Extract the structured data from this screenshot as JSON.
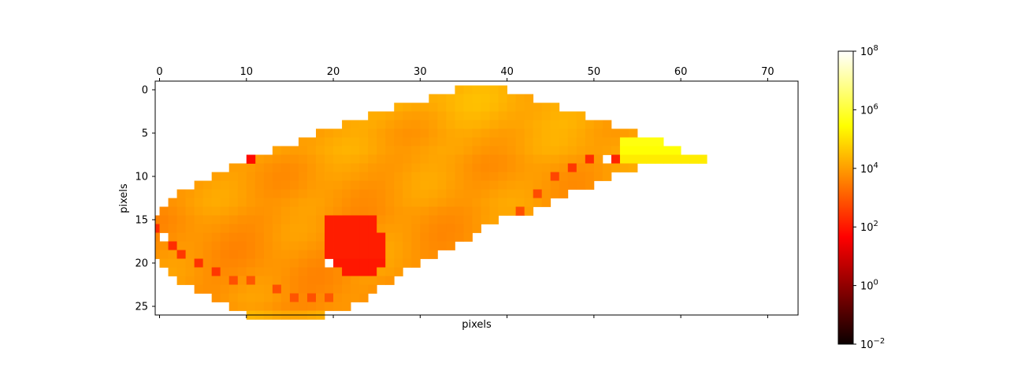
{
  "chart_data": {
    "type": "heatmap",
    "title": "",
    "xlabel": "pixels",
    "ylabel": "pixels",
    "xlim": [
      -0.5,
      73.5
    ],
    "ylim": [
      26.5,
      -0.5
    ],
    "grid": false,
    "x_ticks": [
      "0",
      "10",
      "20",
      "30",
      "40",
      "50",
      "60",
      "70"
    ],
    "y_ticks": [
      "0",
      "5",
      "10",
      "15",
      "20",
      "25"
    ],
    "colormap": "hot",
    "color_scale": "log",
    "colorbar_range": [
      0.01,
      100000000
    ],
    "colorbar_ticks": [
      {
        "value": 0.01,
        "base": "10",
        "exp": "−2"
      },
      {
        "value": 1,
        "base": "10",
        "exp": "0"
      },
      {
        "value": 100,
        "base": "10",
        "exp": "2"
      },
      {
        "value": 10000,
        "base": "10",
        "exp": "4"
      },
      {
        "value": 1000000,
        "base": "10",
        "exp": "6"
      },
      {
        "value": 100000000,
        "base": "10",
        "exp": "8"
      }
    ],
    "grid_size": {
      "rows": 27,
      "cols": 74
    },
    "rows": [
      {
        "y": 0,
        "spans": [
          [
            34,
            39,
            20000
          ]
        ]
      },
      {
        "y": 1,
        "spans": [
          [
            31,
            42,
            20000
          ]
        ]
      },
      {
        "y": 2,
        "spans": [
          [
            27,
            45,
            18000
          ]
        ]
      },
      {
        "y": 3,
        "spans": [
          [
            24,
            48,
            15000
          ]
        ]
      },
      {
        "y": 4,
        "spans": [
          [
            21,
            51,
            14000
          ]
        ]
      },
      {
        "y": 5,
        "spans": [
          [
            18,
            54,
            12000
          ]
        ]
      },
      {
        "y": 6,
        "spans": [
          [
            16,
            52,
            12000
          ],
          [
            53,
            57,
            400000
          ]
        ]
      },
      {
        "y": 7,
        "spans": [
          [
            13,
            52,
            12000
          ],
          [
            53,
            59,
            300000
          ]
        ]
      },
      {
        "y": 8,
        "spans": [
          [
            11,
            52,
            10000
          ],
          [
            53,
            62,
            150000
          ]
        ]
      },
      {
        "y": 9,
        "spans": [
          [
            8,
            54,
            9000
          ]
        ]
      },
      {
        "y": 10,
        "spans": [
          [
            6,
            51,
            9000
          ]
        ]
      },
      {
        "y": 11,
        "spans": [
          [
            4,
            49,
            9000
          ]
        ]
      },
      {
        "y": 12,
        "spans": [
          [
            2,
            46,
            9000
          ]
        ]
      },
      {
        "y": 13,
        "spans": [
          [
            1,
            44,
            9000
          ]
        ]
      },
      {
        "y": 14,
        "spans": [
          [
            0,
            42,
            8000
          ]
        ]
      },
      {
        "y": 15,
        "spans": [
          [
            -1,
            18,
            7000
          ],
          [
            19,
            24,
            120
          ],
          [
            25,
            38,
            8000
          ]
        ]
      },
      {
        "y": 16,
        "spans": [
          [
            -1,
            18,
            7000
          ],
          [
            19,
            24,
            120
          ],
          [
            25,
            36,
            8000
          ]
        ]
      },
      {
        "y": 17,
        "spans": [
          [
            -1,
            18,
            7000
          ],
          [
            19,
            25,
            120
          ],
          [
            26,
            35,
            8000
          ]
        ]
      },
      {
        "y": 18,
        "spans": [
          [
            -1,
            18,
            7000
          ],
          [
            19,
            25,
            120
          ],
          [
            26,
            33,
            8000
          ]
        ]
      },
      {
        "y": 19,
        "spans": [
          [
            -1,
            18,
            7000
          ],
          [
            19,
            25,
            120
          ],
          [
            26,
            31,
            8000
          ]
        ]
      },
      {
        "y": 20,
        "spans": [
          [
            0,
            19,
            7000
          ],
          [
            20,
            25,
            100
          ],
          [
            26,
            29,
            8000
          ]
        ]
      },
      {
        "y": 21,
        "spans": [
          [
            1,
            20,
            7000
          ],
          [
            21,
            24,
            100
          ],
          [
            25,
            27,
            8000
          ]
        ]
      },
      {
        "y": 22,
        "spans": [
          [
            2,
            26,
            7000
          ]
        ]
      },
      {
        "y": 23,
        "spans": [
          [
            4,
            24,
            7000
          ]
        ]
      },
      {
        "y": 24,
        "spans": [
          [
            6,
            23,
            7000
          ]
        ]
      },
      {
        "y": 25,
        "spans": [
          [
            8,
            21,
            6000
          ]
        ]
      },
      {
        "y": 26,
        "spans": [
          [
            10,
            18,
            15000
          ]
        ]
      }
    ],
    "missing_cells": [
      [
        0,
        17
      ],
      [
        51,
        8
      ],
      [
        19,
        20
      ]
    ],
    "low_value_cells": [
      [
        10,
        8,
        60
      ],
      [
        49,
        8,
        200
      ],
      [
        52,
        8,
        150
      ],
      [
        47,
        9,
        300
      ],
      [
        45,
        10,
        500
      ],
      [
        43,
        12,
        600
      ],
      [
        41,
        14,
        700
      ],
      [
        -1,
        16,
        200
      ],
      [
        1,
        18,
        200
      ],
      [
        2,
        19,
        300
      ],
      [
        4,
        20,
        250
      ],
      [
        6,
        21,
        300
      ],
      [
        8,
        22,
        700
      ],
      [
        10,
        22,
        900
      ],
      [
        13,
        23,
        700
      ],
      [
        15,
        24,
        800
      ],
      [
        17,
        24,
        700
      ],
      [
        19,
        24,
        900
      ]
    ]
  }
}
